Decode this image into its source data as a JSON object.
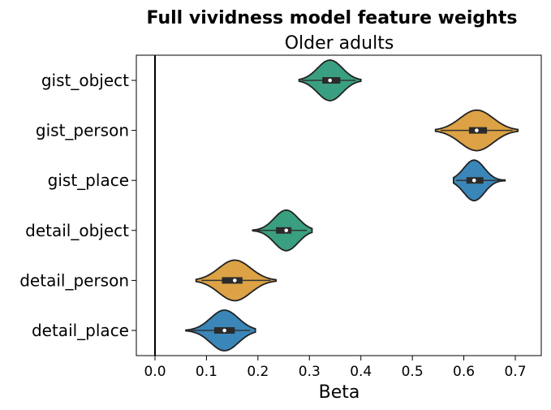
{
  "chart_data": {
    "type": "violin",
    "orientation": "horizontal",
    "title": "Full vividness model feature weights",
    "subtitle": "Older adults",
    "xlabel": "Beta",
    "ylabel": "",
    "xlim": [
      -0.04,
      0.745
    ],
    "xticks": [
      0.0,
      0.1,
      0.2,
      0.3,
      0.4,
      0.5,
      0.6,
      0.7
    ],
    "xtick_labels": [
      "0.0",
      "0.1",
      "0.2",
      "0.3",
      "0.4",
      "0.5",
      "0.6",
      "0.7"
    ],
    "grid": false,
    "legend": "none",
    "reference_line_x": 0.0,
    "categories": [
      "gist_object",
      "gist_person",
      "gist_place",
      "detail_object",
      "detail_person",
      "detail_place"
    ],
    "series": [
      {
        "category": "gist_object",
        "color": "#3a9f80",
        "min": 0.28,
        "max": 0.4,
        "q1": 0.325,
        "median": 0.34,
        "q3": 0.36,
        "whisker_low": 0.285,
        "whisker_high": 0.39
      },
      {
        "category": "gist_person",
        "color": "#dca245",
        "min": 0.545,
        "max": 0.705,
        "q1": 0.61,
        "median": 0.625,
        "q3": 0.645,
        "whisker_low": 0.555,
        "whisker_high": 0.695
      },
      {
        "category": "gist_place",
        "color": "#3a86b8",
        "min": 0.58,
        "max": 0.68,
        "q1": 0.605,
        "median": 0.62,
        "q3": 0.638,
        "whisker_low": 0.585,
        "whisker_high": 0.67
      },
      {
        "category": "detail_object",
        "color": "#3a9f80",
        "min": 0.19,
        "max": 0.305,
        "q1": 0.235,
        "median": 0.255,
        "q3": 0.265,
        "whisker_low": 0.195,
        "whisker_high": 0.295
      },
      {
        "category": "detail_person",
        "color": "#dca245",
        "min": 0.08,
        "max": 0.235,
        "q1": 0.13,
        "median": 0.155,
        "q3": 0.17,
        "whisker_low": 0.09,
        "whisker_high": 0.225
      },
      {
        "category": "detail_place",
        "color": "#3a86b8",
        "min": 0.06,
        "max": 0.195,
        "q1": 0.115,
        "median": 0.135,
        "q3": 0.155,
        "whisker_low": 0.07,
        "whisker_high": 0.185
      }
    ]
  }
}
